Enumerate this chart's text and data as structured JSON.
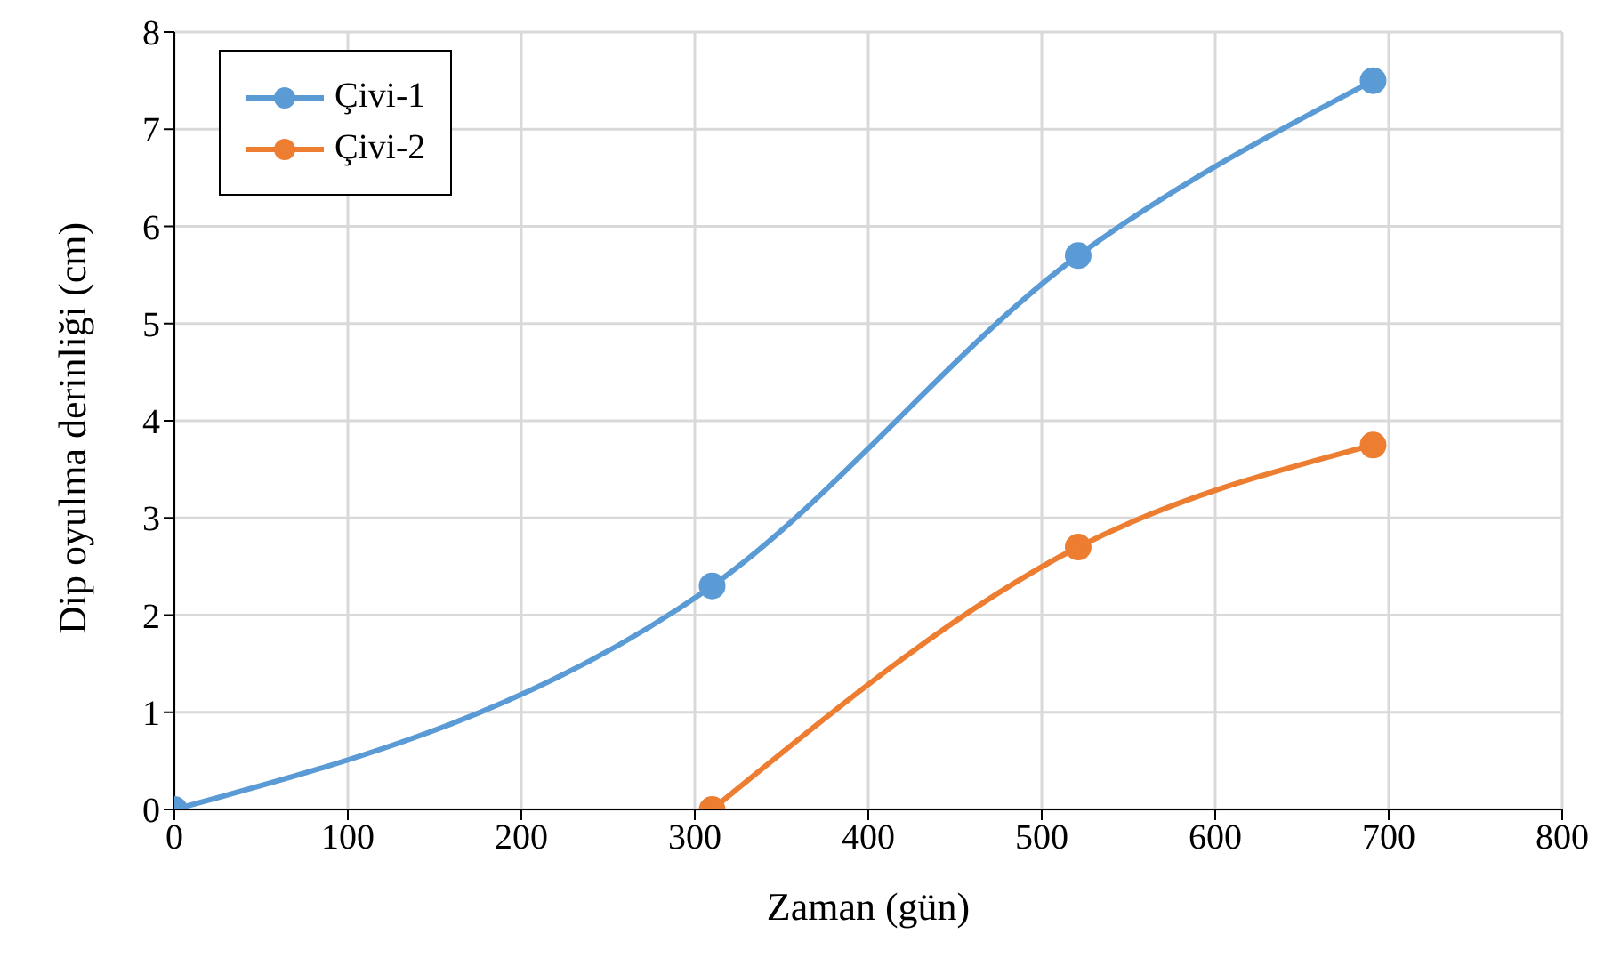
{
  "chart_data": {
    "type": "line",
    "xlabel": "Zaman (gün)",
    "ylabel": "Dip oyulma derinliği (cm)",
    "xlim": [
      0,
      800
    ],
    "ylim": [
      0,
      8
    ],
    "xticks": [
      0,
      100,
      200,
      300,
      400,
      500,
      600,
      700,
      800
    ],
    "yticks": [
      0,
      1,
      2,
      3,
      4,
      5,
      6,
      7,
      8
    ],
    "grid": true,
    "legend": "top left",
    "marker": "circle",
    "line_style": "solid",
    "series": [
      {
        "name": "Çivi-1",
        "color": "#5b9bd5",
        "x": [
          0,
          310,
          521,
          691
        ],
        "values": [
          0,
          2.3,
          5.7,
          7.5
        ]
      },
      {
        "name": "Çivi-2",
        "color": "#ed7d31",
        "x": [
          310,
          521,
          691
        ],
        "values": [
          0,
          2.7,
          3.75
        ]
      }
    ]
  }
}
